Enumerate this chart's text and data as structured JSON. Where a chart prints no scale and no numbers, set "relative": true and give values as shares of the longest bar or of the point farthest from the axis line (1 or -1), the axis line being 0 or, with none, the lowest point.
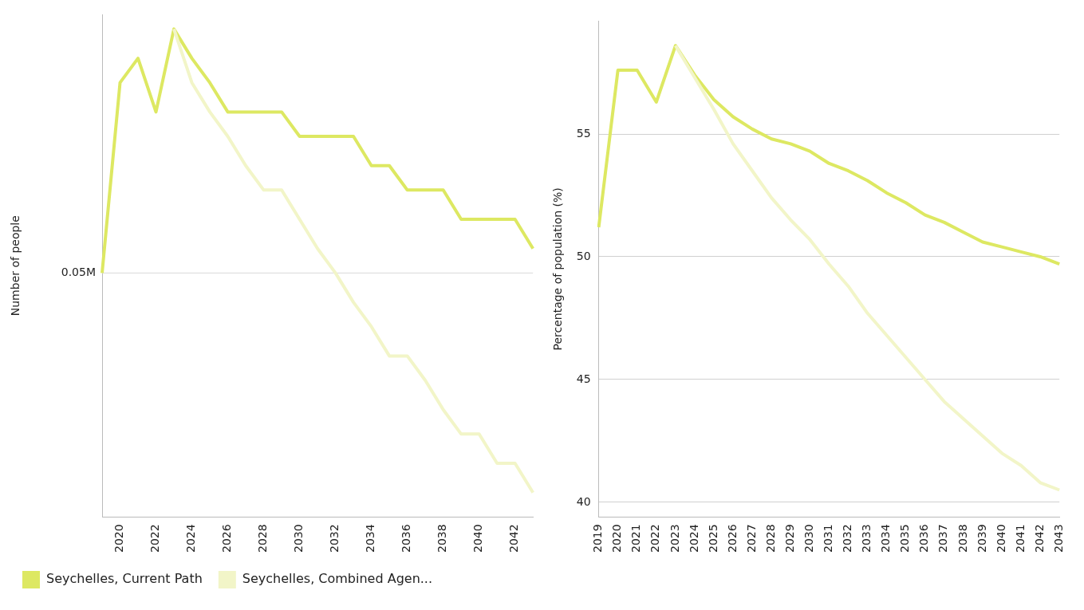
{
  "chart_data": [
    {
      "type": "line",
      "relative": true,
      "ylabel": "Number of people",
      "categories": [
        null,
        "2020",
        null,
        "2022",
        null,
        "2024",
        null,
        "2026",
        null,
        "2028",
        null,
        "2030",
        null,
        "2032",
        null,
        "2034",
        null,
        "2036",
        null,
        "2038",
        null,
        "2040",
        null,
        "2042",
        null
      ],
      "series": [
        {
          "name": "Seychelles, Current Path",
          "color": "#dde862",
          "values": [
            0.5,
            0.89,
            0.94,
            0.83,
            1,
            0.94,
            0.89,
            0.83,
            0.83,
            0.83,
            0.83,
            0.78,
            0.78,
            0.78,
            0.78,
            0.72,
            0.72,
            0.67,
            0.67,
            0.67,
            0.61,
            0.61,
            0.61,
            0.61,
            0.55
          ]
        },
        {
          "name": "Seychelles, Combined Agen...",
          "color": "#f2f5c8",
          "values": [
            null,
            null,
            null,
            null,
            1,
            0.89,
            0.83,
            0.78,
            0.72,
            0.67,
            0.67,
            0.61,
            0.55,
            0.5,
            0.44,
            0.39,
            0.33,
            0.33,
            0.28,
            0.22,
            0.17,
            0.17,
            0.11,
            0.11,
            0.05
          ]
        }
      ],
      "ref_lines": [
        {
          "axis": "y",
          "value": 0.5,
          "label": "0.05M",
          "color": "#d9d9d9"
        }
      ],
      "grid": false,
      "legend": "bottom",
      "marker": "none",
      "line_style": "solid"
    },
    {
      "type": "line",
      "ylabel": "Percentage of population (%)",
      "categories": [
        "2019",
        "2020",
        "2021",
        "2022",
        "2023",
        "2024",
        "2025",
        "2026",
        "2027",
        "2028",
        "2029",
        "2030",
        "2031",
        "2032",
        "2033",
        "2034",
        "2035",
        "2036",
        "2037",
        "2038",
        "2039",
        "2040",
        "2041",
        "2042",
        "2043"
      ],
      "series": [
        {
          "color": "#dde862",
          "values": [
            51.2,
            57.6,
            57.6,
            56.3,
            58.6,
            57.4,
            56.4,
            55.7,
            55.2,
            54.8,
            54.6,
            54.3,
            53.8,
            53.5,
            53.1,
            52.6,
            52.2,
            51.7,
            51.4,
            51,
            50.6,
            50.4,
            50.2,
            50,
            49.7
          ]
        },
        {
          "color": "#f2f5c8",
          "values": [
            null,
            null,
            null,
            null,
            58.6,
            57.3,
            56,
            54.6,
            53.5,
            52.4,
            51.5,
            50.7,
            49.7,
            48.8,
            47.7,
            46.8,
            45.9,
            45,
            44.1,
            43.4,
            42.7,
            42,
            41.5,
            40.8,
            40.5
          ]
        }
      ],
      "ylim": [
        39.4,
        59.6
      ],
      "yticks": [
        40,
        45,
        50,
        55
      ],
      "grid": "y",
      "legend": false,
      "marker": "none",
      "line_style": "solid"
    }
  ]
}
